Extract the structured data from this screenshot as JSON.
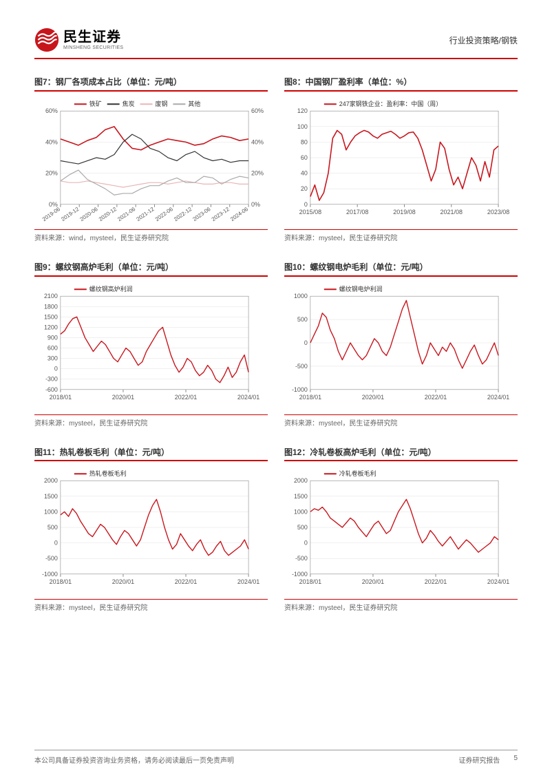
{
  "header": {
    "logo_cn": "民生证券",
    "logo_en": "MINSHENG SECURITIES",
    "right_text": "行业投资策略/钢铁"
  },
  "footer": {
    "left": "本公司具备证券投资咨询业务资格，请务必阅读最后一页免责声明",
    "right_label": "证券研究报告",
    "page_num": "5"
  },
  "colors": {
    "brand_red": "#c8161d",
    "series_red": "#c8161d",
    "series_dark": "#333333",
    "series_pink": "#e8b6b6",
    "series_gray": "#aaaaaa",
    "grid": "#e0e0e0"
  },
  "charts": [
    {
      "id": "c7",
      "title": "图7：钢厂各项成本占比（单位：元/吨）",
      "source": "资料来源：wind，mysteel，民生证券研究院",
      "type": "multi-line",
      "x_labels": [
        "2019-06",
        "2019-12",
        "2020-06",
        "2020-12",
        "2021-06",
        "2021-12",
        "2022-06",
        "2022-12",
        "2023-06",
        "2023-12",
        "2024-06"
      ],
      "y_labels_left": [
        "0%",
        "20%",
        "40%",
        "60%"
      ],
      "y_labels_right": [
        "0%",
        "20%",
        "40%",
        "60%"
      ],
      "ylim": [
        0,
        60
      ],
      "legend": [
        {
          "label": "铁矿",
          "color": "#c8161d"
        },
        {
          "label": "焦炭",
          "color": "#333333"
        },
        {
          "label": "废钢",
          "color": "#e8b6b6"
        },
        {
          "label": "其他",
          "color": "#aaaaaa"
        }
      ],
      "series": [
        {
          "color": "#c8161d",
          "width": 1.6,
          "data": [
            42,
            40,
            38,
            41,
            43,
            48,
            50,
            42,
            36,
            35,
            38,
            40,
            42,
            41,
            40,
            38,
            39,
            42,
            44,
            43,
            41,
            42
          ]
        },
        {
          "color": "#333333",
          "width": 1.2,
          "data": [
            28,
            27,
            26,
            28,
            30,
            29,
            32,
            40,
            45,
            42,
            36,
            34,
            30,
            28,
            32,
            34,
            30,
            28,
            29,
            27,
            28,
            28
          ]
        },
        {
          "color": "#e8b6b6",
          "width": 1.2,
          "data": [
            15,
            14,
            14,
            15,
            14,
            13,
            12,
            11,
            12,
            13,
            14,
            14,
            13,
            14,
            15,
            14,
            13,
            13,
            14,
            14,
            13,
            13
          ]
        },
        {
          "color": "#aaaaaa",
          "width": 1.2,
          "data": [
            15,
            19,
            22,
            16,
            13,
            10,
            6,
            7,
            7,
            10,
            12,
            12,
            15,
            17,
            14,
            14,
            18,
            17,
            13,
            16,
            18,
            17
          ]
        }
      ]
    },
    {
      "id": "c8",
      "title": "图8：中国钢厂盈利率（单位：%）",
      "source": "资料来源：mysteel，民生证券研究院",
      "type": "line",
      "x_labels": [
        "2015/08",
        "2017/08",
        "2019/08",
        "2021/08",
        "2023/08"
      ],
      "y_labels": [
        "0",
        "20",
        "40",
        "60",
        "80",
        "100",
        "120"
      ],
      "ylim": [
        0,
        120
      ],
      "legend": [
        {
          "label": "247家钢铁企业：盈利率：中国（周）",
          "color": "#c8161d"
        }
      ],
      "series": [
        {
          "color": "#c8161d",
          "width": 1.6,
          "data": [
            10,
            25,
            5,
            15,
            40,
            85,
            95,
            90,
            70,
            80,
            88,
            92,
            95,
            93,
            88,
            85,
            90,
            92,
            94,
            90,
            85,
            88,
            92,
            93,
            85,
            70,
            50,
            30,
            45,
            80,
            72,
            45,
            25,
            35,
            20,
            40,
            60,
            50,
            30,
            55,
            35,
            70,
            75
          ]
        }
      ]
    },
    {
      "id": "c9",
      "title": "图9：螺纹钢高炉毛利（单位：元/吨）",
      "source": "资料来源：mysteel，民生证券研究院",
      "type": "line",
      "x_labels": [
        "2018/01",
        "2020/01",
        "2022/01",
        "2024/01"
      ],
      "y_labels": [
        "-600",
        "-300",
        "0",
        "300",
        "600",
        "900",
        "1200",
        "1500",
        "1800",
        "2100"
      ],
      "ylim": [
        -600,
        2100
      ],
      "legend": [
        {
          "label": "螺纹钢高炉利润",
          "color": "#c8161d"
        }
      ],
      "series": [
        {
          "color": "#c8161d",
          "width": 1.4,
          "data": [
            1000,
            1100,
            1300,
            1450,
            1500,
            1200,
            900,
            700,
            500,
            650,
            800,
            700,
            500,
            300,
            200,
            400,
            600,
            500,
            300,
            100,
            200,
            500,
            700,
            900,
            1100,
            1200,
            800,
            400,
            100,
            -100,
            50,
            300,
            200,
            -50,
            -200,
            -100,
            100,
            -50,
            -300,
            -400,
            -200,
            50,
            -250,
            -100,
            200,
            400,
            -100
          ]
        }
      ]
    },
    {
      "id": "c10",
      "title": "图10：螺纹钢电炉毛利（单位：元/吨）",
      "source": "资料来源：mysteel，民生证券研究院",
      "type": "line",
      "x_labels": [
        "2018/01",
        "2020/01",
        "2022/01",
        "2024/01"
      ],
      "y_labels": [
        "-1000",
        "-500",
        "0",
        "500",
        "1000"
      ],
      "ylim": [
        -1000,
        1200
      ],
      "legend": [
        {
          "label": "螺纹钢电炉利润",
          "color": "#c8161d"
        }
      ],
      "series": [
        {
          "color": "#c8161d",
          "width": 1.4,
          "data": [
            100,
            300,
            500,
            800,
            700,
            400,
            200,
            -100,
            -300,
            -100,
            100,
            -50,
            -200,
            -300,
            -200,
            0,
            200,
            100,
            -100,
            -200,
            0,
            300,
            600,
            900,
            1100,
            700,
            300,
            -100,
            -400,
            -200,
            100,
            -50,
            -200,
            0,
            -100,
            100,
            -50,
            -300,
            -500,
            -300,
            -100,
            50,
            -200,
            -400,
            -300,
            -100,
            100,
            -200
          ]
        }
      ]
    },
    {
      "id": "c11",
      "title": "图11：热轧卷板毛利（单位：元/吨）",
      "source": "资料来源：mysteel，民生证券研究院",
      "type": "line",
      "x_labels": [
        "2018/01",
        "2020/01",
        "2022/01",
        "2024/01"
      ],
      "y_labels": [
        "-1000",
        "-500",
        "0",
        "500",
        "1000",
        "1500",
        "2000"
      ],
      "ylim": [
        -1000,
        2000
      ],
      "legend": [
        {
          "label": "热轧卷板毛利",
          "color": "#c8161d"
        }
      ],
      "series": [
        {
          "color": "#c8161d",
          "width": 1.4,
          "data": [
            900,
            1000,
            850,
            1100,
            950,
            700,
            500,
            300,
            200,
            400,
            600,
            500,
            300,
            100,
            -50,
            200,
            400,
            300,
            100,
            -100,
            100,
            500,
            900,
            1200,
            1400,
            1000,
            500,
            100,
            -200,
            -50,
            300,
            100,
            -100,
            -250,
            -50,
            100,
            -200,
            -400,
            -300,
            -100,
            50,
            -250,
            -400,
            -300,
            -200,
            -100,
            100,
            -200
          ]
        }
      ]
    },
    {
      "id": "c12",
      "title": "图12：冷轧卷板高炉毛利（单位：元/吨）",
      "source": "资料来源：mysteel，民生证券研究院",
      "type": "line",
      "x_labels": [
        "2018/01",
        "2020/01",
        "2022/01",
        "2024/01"
      ],
      "y_labels": [
        "-1000",
        "-500",
        "0",
        "500",
        "1000",
        "1500",
        "2000"
      ],
      "ylim": [
        -1000,
        2000
      ],
      "legend": [
        {
          "label": "冷轧卷板毛利",
          "color": "#c8161d"
        }
      ],
      "series": [
        {
          "color": "#c8161d",
          "width": 1.4,
          "data": [
            1000,
            1100,
            1050,
            1150,
            1000,
            800,
            700,
            600,
            500,
            650,
            800,
            700,
            500,
            350,
            200,
            400,
            600,
            700,
            500,
            300,
            400,
            700,
            1000,
            1200,
            1400,
            1100,
            700,
            300,
            0,
            150,
            400,
            250,
            50,
            -100,
            50,
            200,
            0,
            -200,
            -50,
            100,
            0,
            -150,
            -300,
            -200,
            -100,
            0,
            200,
            100
          ]
        }
      ]
    }
  ]
}
